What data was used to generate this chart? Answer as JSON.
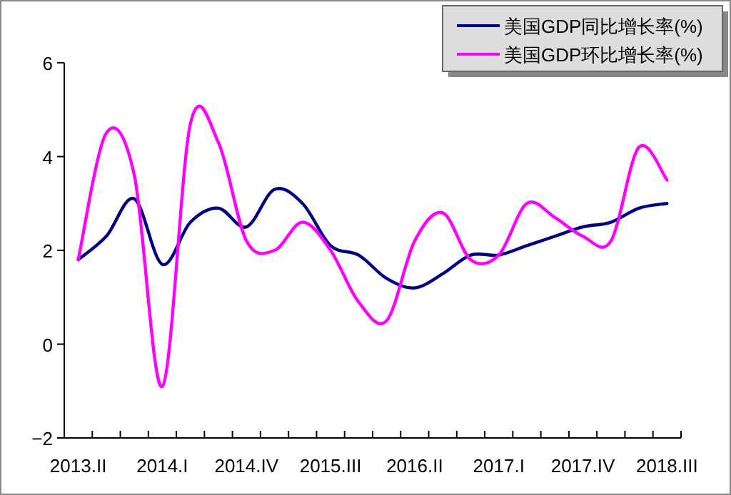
{
  "chart_data": {
    "type": "line",
    "categories": [
      "2013.II",
      null,
      null,
      "2014.I",
      null,
      null,
      "2014.IV",
      null,
      null,
      "2015.III",
      null,
      null,
      "2016.II",
      null,
      null,
      "2017.I",
      null,
      null,
      "2017.IV",
      null,
      null,
      "2018.III"
    ],
    "series": [
      {
        "name": "美国GDP同比增长率(%)",
        "color": "#000080",
        "values": [
          1.8,
          2.3,
          3.1,
          1.7,
          2.6,
          2.9,
          2.5,
          3.3,
          3.0,
          2.1,
          1.9,
          1.4,
          1.2,
          1.5,
          1.9,
          1.9,
          2.1,
          2.3,
          2.5,
          2.6,
          2.9,
          3.0
        ]
      },
      {
        "name": "美国GDP环比增长率(%)",
        "color": "#ff00ff",
        "values": [
          1.8,
          4.5,
          3.6,
          -0.9,
          4.7,
          4.3,
          2.2,
          2.0,
          2.6,
          2.0,
          0.9,
          0.5,
          2.2,
          2.8,
          1.8,
          1.9,
          3.0,
          2.7,
          2.3,
          2.2,
          4.2,
          3.5
        ]
      }
    ],
    "ylim": [
      -2,
      6
    ],
    "yticks": [
      -2,
      0,
      2,
      4,
      6
    ],
    "grid": false,
    "legend": "top right",
    "marker": "none",
    "line_style": "solid"
  }
}
